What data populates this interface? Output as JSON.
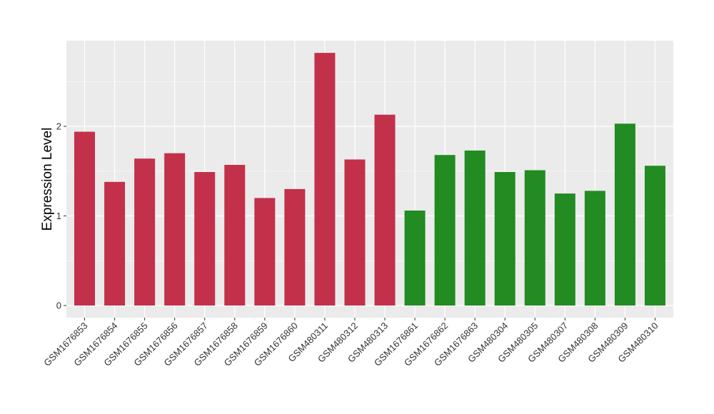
{
  "chart_data": {
    "type": "bar",
    "title": "",
    "xlabel": "",
    "ylabel": "Expression Level",
    "ylim": [
      0,
      3.0
    ],
    "yticks": [
      0,
      1,
      2
    ],
    "grid": true,
    "legend": "none",
    "colors": {
      "group_a": "#c3304a",
      "group_b": "#228b22",
      "panel_bg": "#ebebeb",
      "grid": "#ffffff"
    },
    "categories": [
      "GSM1676853",
      "GSM1676854",
      "GSM1676855",
      "GSM1676856",
      "GSM1676857",
      "GSM1676858",
      "GSM1676859",
      "GSM1676860",
      "GSM480311",
      "GSM480312",
      "GSM480313",
      "GSM1676861",
      "GSM1676862",
      "GSM1676863",
      "GSM480304",
      "GSM480305",
      "GSM480307",
      "GSM480308",
      "GSM480309",
      "GSM480310"
    ],
    "values": [
      1.94,
      1.38,
      1.64,
      1.7,
      1.49,
      1.57,
      1.2,
      1.3,
      2.82,
      1.63,
      2.13,
      1.06,
      1.68,
      1.73,
      1.49,
      1.51,
      1.25,
      1.28,
      2.03,
      1.56
    ],
    "groups": [
      "a",
      "a",
      "a",
      "a",
      "a",
      "a",
      "a",
      "a",
      "a",
      "a",
      "a",
      "b",
      "b",
      "b",
      "b",
      "b",
      "b",
      "b",
      "b",
      "b"
    ]
  }
}
